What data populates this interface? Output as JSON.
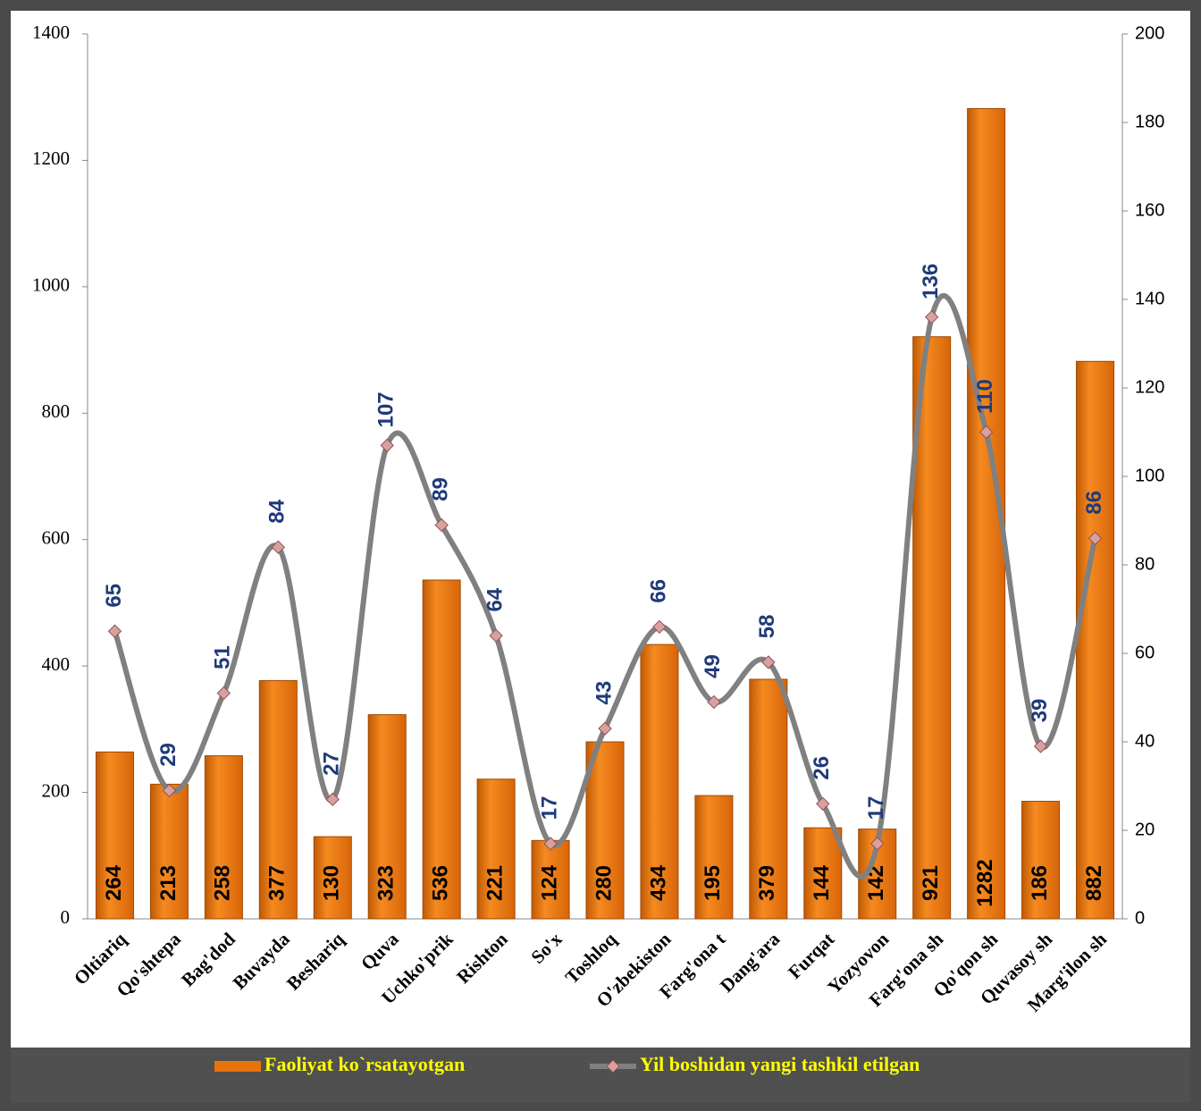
{
  "chart_data": {
    "type": "bar",
    "categories": [
      "Oltiariq",
      "Qo'shtepa",
      "Bag'dod",
      "Buvayda",
      "Beshariq",
      "Quva",
      "Uchko'prik",
      "Rishton",
      "So'x",
      "Toshloq",
      "O'zbekiston",
      "Farg'ona t",
      "Dang'ara",
      "Furqat",
      "Yozyovon",
      "Farg'ona sh",
      "Qo'qon sh",
      "Quvasoy sh",
      "Marg'ilon sh"
    ],
    "series": [
      {
        "name": "Faoliyat ko`rsatayotgan",
        "type": "bar",
        "color": "#e8730c",
        "axis": "y",
        "values": [
          264,
          213,
          258,
          377,
          130,
          323,
          536,
          221,
          124,
          280,
          434,
          195,
          379,
          144,
          142,
          921,
          1282,
          186,
          882
        ]
      },
      {
        "name": "Yil boshidan yangi tashkil etilgan",
        "type": "line",
        "color": "#808080",
        "axis": "y2",
        "values": [
          65,
          29,
          51,
          84,
          27,
          107,
          89,
          64,
          17,
          43,
          66,
          49,
          58,
          26,
          17,
          136,
          110,
          39,
          86
        ]
      }
    ],
    "ylim": [
      0,
      1400
    ],
    "yticks": [
      0,
      200,
      400,
      600,
      800,
      1000,
      1200,
      1400
    ],
    "y2lim": [
      0,
      200
    ],
    "y2ticks": [
      0,
      20,
      40,
      60,
      80,
      100,
      120,
      140,
      160,
      180,
      200
    ],
    "legend": "bottom"
  }
}
